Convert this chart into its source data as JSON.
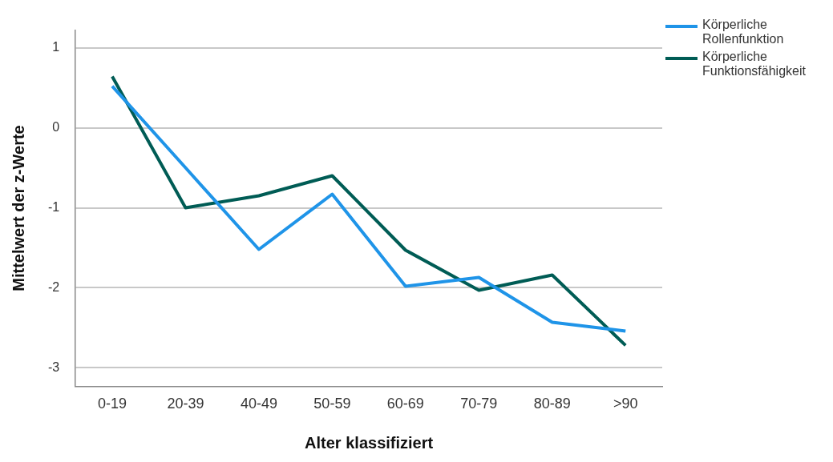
{
  "chart_data": {
    "type": "line",
    "xlabel": "Alter klassifiziert",
    "ylabel": "Mittelwert der z-Werte",
    "categories": [
      "0-19",
      "20-39",
      "40-49",
      "50-59",
      "60-69",
      "70-79",
      "80-89",
      ">90"
    ],
    "series": [
      {
        "name": "Körperliche Rollenfunktion",
        "color": "#1f94e8",
        "values": [
          0.52,
          -0.5,
          -1.52,
          -0.83,
          -1.98,
          -1.87,
          -2.43,
          -2.54
        ]
      },
      {
        "name": "Körperliche Funktionsfähigkeit",
        "color": "#005c55",
        "values": [
          0.64,
          -1.0,
          -0.85,
          -0.6,
          -1.53,
          -2.03,
          -1.84,
          -2.72
        ]
      }
    ],
    "ylim": [
      -3.23,
      1.22
    ],
    "yticks": [
      -3,
      -2,
      -1,
      0,
      1
    ],
    "grid": "y",
    "legend": "top right",
    "marker": "none",
    "line_style": "solid"
  }
}
